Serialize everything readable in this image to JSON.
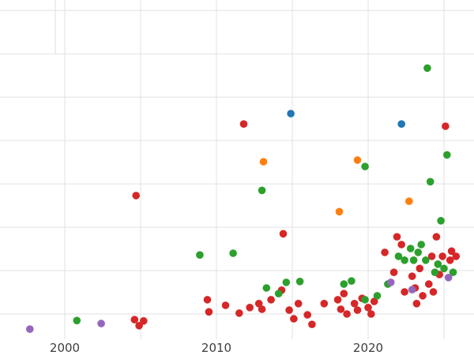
{
  "chart_data": {
    "type": "scatter",
    "title": "",
    "xlabel": "",
    "ylabel": "",
    "legend": "none",
    "grid": true,
    "grid_color": "#e2e2e6",
    "tick_label_color": "#3d3d3d",
    "marker_radius": 4.8,
    "xlim": [
      1995.73,
      2026.98
    ],
    "ylim": [
      4.18,
      82.4
    ],
    "x_gridlines": [
      2000,
      2005,
      2010,
      2015,
      2020,
      2025
    ],
    "y_gridlines": [
      10,
      20,
      30,
      40,
      50,
      60,
      70,
      80
    ],
    "x_ticks": [
      {
        "value": 2000,
        "label": "2000"
      },
      {
        "value": 2010,
        "label": "2010"
      },
      {
        "value": 2020,
        "label": "2020"
      }
    ],
    "series": [
      {
        "name": "red",
        "color": "#d62728",
        "points": [
          [
            2004.6,
            8.7
          ],
          [
            2004.9,
            7.3
          ],
          [
            2005.2,
            8.4
          ],
          [
            2004.7,
            37.3
          ],
          [
            2011.8,
            53.8
          ],
          [
            2014.4,
            28.5
          ],
          [
            2009.4,
            13.3
          ],
          [
            2009.5,
            10.5
          ],
          [
            2010.6,
            12.0
          ],
          [
            2011.5,
            10.2
          ],
          [
            2012.2,
            11.5
          ],
          [
            2012.8,
            12.4
          ],
          [
            2013.0,
            11.1
          ],
          [
            2013.6,
            13.3
          ],
          [
            2014.3,
            15.5
          ],
          [
            2014.8,
            10.9
          ],
          [
            2015.1,
            8.9
          ],
          [
            2015.4,
            12.4
          ],
          [
            2016.0,
            9.8
          ],
          [
            2016.3,
            7.6
          ],
          [
            2017.1,
            12.4
          ],
          [
            2018.0,
            13.3
          ],
          [
            2018.2,
            11.1
          ],
          [
            2018.4,
            14.7
          ],
          [
            2018.6,
            10.0
          ],
          [
            2019.1,
            12.4
          ],
          [
            2019.3,
            10.9
          ],
          [
            2019.6,
            13.6
          ],
          [
            2020.0,
            11.5
          ],
          [
            2020.2,
            10.0
          ],
          [
            2020.4,
            12.9
          ],
          [
            2021.1,
            24.2
          ],
          [
            2021.7,
            19.6
          ],
          [
            2021.9,
            27.8
          ],
          [
            2022.2,
            26.0
          ],
          [
            2022.4,
            15.1
          ],
          [
            2022.9,
            18.7
          ],
          [
            2023.1,
            16.0
          ],
          [
            2023.2,
            12.4
          ],
          [
            2023.4,
            20.5
          ],
          [
            2023.6,
            14.2
          ],
          [
            2024.0,
            16.9
          ],
          [
            2024.2,
            23.3
          ],
          [
            2024.3,
            15.1
          ],
          [
            2024.5,
            27.8
          ],
          [
            2024.7,
            19.1
          ],
          [
            2024.9,
            23.3
          ],
          [
            2025.1,
            53.3
          ],
          [
            2025.4,
            22.4
          ],
          [
            2025.5,
            24.5
          ],
          [
            2025.8,
            23.3
          ]
        ]
      },
      {
        "name": "green",
        "color": "#2ca02c",
        "points": [
          [
            2000.8,
            8.5
          ],
          [
            2008.9,
            23.6
          ],
          [
            2011.1,
            24.0
          ],
          [
            2013.0,
            38.5
          ],
          [
            2013.3,
            16.0
          ],
          [
            2014.1,
            14.7
          ],
          [
            2014.6,
            17.3
          ],
          [
            2015.5,
            17.5
          ],
          [
            2018.4,
            16.9
          ],
          [
            2018.9,
            17.6
          ],
          [
            2019.8,
            44.0
          ],
          [
            2019.8,
            13.3
          ],
          [
            2020.6,
            14.2
          ],
          [
            2021.3,
            16.9
          ],
          [
            2022.0,
            23.3
          ],
          [
            2022.4,
            22.4
          ],
          [
            2022.8,
            25.1
          ],
          [
            2023.0,
            22.4
          ],
          [
            2023.3,
            24.2
          ],
          [
            2023.5,
            26.0
          ],
          [
            2023.8,
            22.4
          ],
          [
            2023.9,
            66.7
          ],
          [
            2024.1,
            40.5
          ],
          [
            2024.4,
            19.6
          ],
          [
            2024.6,
            21.5
          ],
          [
            2024.8,
            31.5
          ],
          [
            2025.0,
            20.5
          ],
          [
            2025.2,
            46.7
          ],
          [
            2025.6,
            19.6
          ]
        ]
      },
      {
        "name": "orange",
        "color": "#ff7f0e",
        "points": [
          [
            2013.1,
            45.1
          ],
          [
            2018.1,
            33.6
          ],
          [
            2019.3,
            45.5
          ],
          [
            2022.7,
            36.0
          ]
        ]
      },
      {
        "name": "blue",
        "color": "#1f77b4",
        "points": [
          [
            2014.9,
            56.2
          ],
          [
            2022.2,
            53.8
          ]
        ]
      },
      {
        "name": "purple",
        "color": "#9467bd",
        "points": [
          [
            1997.7,
            6.5
          ],
          [
            2002.4,
            7.8
          ],
          [
            2021.5,
            17.3
          ],
          [
            2022.9,
            15.6
          ],
          [
            2025.3,
            18.4
          ]
        ]
      }
    ]
  }
}
